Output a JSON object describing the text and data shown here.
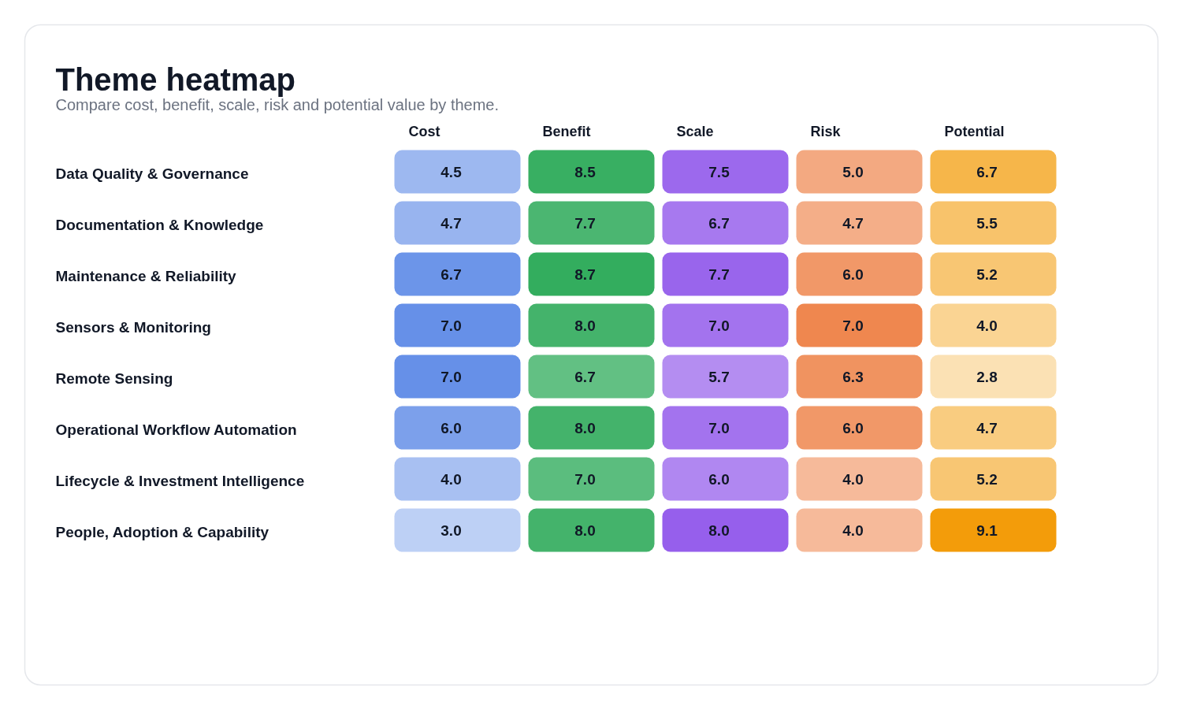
{
  "chart_data": {
    "type": "heatmap",
    "title": "Theme heatmap",
    "subtitle": "Compare cost, benefit, scale, risk and potential value by theme.",
    "categories": [
      "Cost",
      "Benefit",
      "Scale",
      "Risk",
      "Potential"
    ],
    "y_categories": [
      "Data Quality & Governance",
      "Documentation & Knowledge",
      "Maintenance & Reliability",
      "Sensors & Monitoring",
      "Remote Sensing",
      "Operational Workflow Automation",
      "Lifecycle & Investment Intelligence",
      "People, Adoption & Capability"
    ],
    "cells": [
      [
        4.5,
        8.5,
        7.5,
        5.0,
        6.7
      ],
      [
        4.7,
        7.7,
        6.7,
        4.7,
        5.5
      ],
      [
        6.7,
        8.7,
        7.7,
        6.0,
        5.2
      ],
      [
        7.0,
        8.0,
        7.0,
        7.0,
        4.0
      ],
      [
        7.0,
        6.7,
        5.7,
        6.3,
        2.8
      ],
      [
        6.0,
        8.0,
        7.0,
        6.0,
        4.7
      ],
      [
        4.0,
        7.0,
        6.0,
        4.0,
        5.2
      ],
      [
        3.0,
        8.0,
        8.0,
        4.0,
        9.1
      ]
    ],
    "cell_labels": [
      [
        "4.5",
        "8.5",
        "7.5",
        "5.0",
        "6.7"
      ],
      [
        "4.7",
        "7.7",
        "6.7",
        "4.7",
        "5.5"
      ],
      [
        "6.7",
        "8.7",
        "7.7",
        "6.0",
        "5.2"
      ],
      [
        "7.0",
        "8.0",
        "7.0",
        "7.0",
        "4.0"
      ],
      [
        "7.0",
        "6.7",
        "5.7",
        "6.3",
        "2.8"
      ],
      [
        "6.0",
        "8.0",
        "7.0",
        "6.0",
        "4.7"
      ],
      [
        "4.0",
        "7.0",
        "6.0",
        "4.0",
        "5.2"
      ],
      [
        "3.0",
        "8.0",
        "8.0",
        "4.0",
        "9.1"
      ]
    ],
    "colors": [
      "#386fe1",
      "#2aa957",
      "#8749e9",
      "#ea631a",
      "#f39c0a"
    ]
  }
}
